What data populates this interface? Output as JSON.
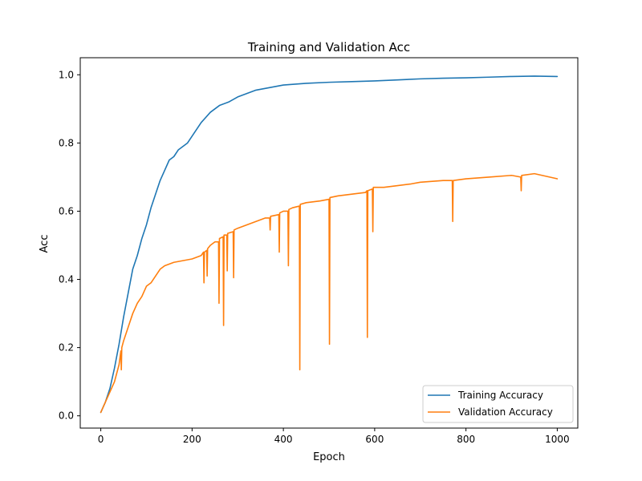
{
  "chart_data": {
    "type": "line",
    "title": "Training and Validation Acc",
    "xlabel": "Epoch",
    "ylabel": "Acc",
    "xlim": [
      -45,
      1045
    ],
    "ylim": [
      -0.036,
      1.05
    ],
    "xticks": [
      0,
      200,
      400,
      600,
      800,
      1000
    ],
    "xtick_labels": [
      "0",
      "200",
      "400",
      "600",
      "800",
      "1000"
    ],
    "yticks": [
      0.0,
      0.2,
      0.4,
      0.6,
      0.8,
      1.0
    ],
    "ytick_labels": [
      "0.0",
      "0.2",
      "0.4",
      "0.6",
      "0.8",
      "1.0"
    ],
    "grid": false,
    "legend_position": "lower-right",
    "series": [
      {
        "name": "Training Accuracy",
        "color": "#1f77b4",
        "x": [
          0,
          10,
          20,
          30,
          40,
          50,
          60,
          70,
          80,
          90,
          100,
          110,
          120,
          130,
          140,
          150,
          160,
          170,
          180,
          190,
          200,
          220,
          240,
          260,
          280,
          300,
          320,
          340,
          360,
          380,
          400,
          450,
          500,
          550,
          600,
          650,
          700,
          750,
          800,
          850,
          900,
          950,
          1000
        ],
        "values": [
          0.01,
          0.04,
          0.08,
          0.14,
          0.21,
          0.29,
          0.36,
          0.43,
          0.47,
          0.52,
          0.56,
          0.61,
          0.65,
          0.69,
          0.72,
          0.75,
          0.76,
          0.78,
          0.79,
          0.8,
          0.82,
          0.86,
          0.89,
          0.91,
          0.92,
          0.935,
          0.945,
          0.955,
          0.96,
          0.965,
          0.97,
          0.975,
          0.978,
          0.98,
          0.982,
          0.985,
          0.988,
          0.99,
          0.991,
          0.993,
          0.995,
          0.996,
          0.995
        ]
      },
      {
        "name": "Validation Accuracy",
        "color": "#ff7f0e",
        "x": [
          0,
          10,
          20,
          30,
          40,
          44,
          45,
          46,
          50,
          60,
          70,
          80,
          90,
          100,
          110,
          120,
          130,
          140,
          150,
          160,
          180,
          200,
          220,
          225,
          226,
          227,
          232,
          233,
          234,
          240,
          250,
          258,
          259,
          260,
          268,
          269,
          270,
          276,
          277,
          278,
          290,
          291,
          292,
          300,
          320,
          340,
          360,
          370,
          371,
          372,
          390,
          391,
          392,
          400,
          410,
          411,
          412,
          420,
          435,
          436,
          437,
          450,
          480,
          500,
          501,
          502,
          520,
          550,
          580,
          583,
          584,
          585,
          595,
          596,
          597,
          620,
          650,
          680,
          700,
          750,
          770,
          771,
          772,
          800,
          850,
          900,
          920,
          921,
          922,
          950,
          1000
        ],
        "values": [
          0.01,
          0.04,
          0.07,
          0.1,
          0.15,
          0.19,
          0.135,
          0.2,
          0.22,
          0.26,
          0.3,
          0.33,
          0.35,
          0.38,
          0.39,
          0.41,
          0.43,
          0.44,
          0.445,
          0.45,
          0.455,
          0.46,
          0.47,
          0.48,
          0.39,
          0.48,
          0.485,
          0.41,
          0.49,
          0.5,
          0.51,
          0.51,
          0.33,
          0.52,
          0.525,
          0.265,
          0.53,
          0.53,
          0.425,
          0.535,
          0.54,
          0.405,
          0.545,
          0.55,
          0.56,
          0.57,
          0.58,
          0.58,
          0.545,
          0.585,
          0.59,
          0.48,
          0.595,
          0.6,
          0.6,
          0.44,
          0.605,
          0.61,
          0.615,
          0.135,
          0.62,
          0.625,
          0.63,
          0.635,
          0.21,
          0.64,
          0.645,
          0.65,
          0.655,
          0.66,
          0.23,
          0.66,
          0.665,
          0.54,
          0.67,
          0.67,
          0.675,
          0.68,
          0.685,
          0.69,
          0.69,
          0.57,
          0.69,
          0.695,
          0.7,
          0.705,
          0.7,
          0.66,
          0.705,
          0.71,
          0.695
        ]
      }
    ]
  }
}
